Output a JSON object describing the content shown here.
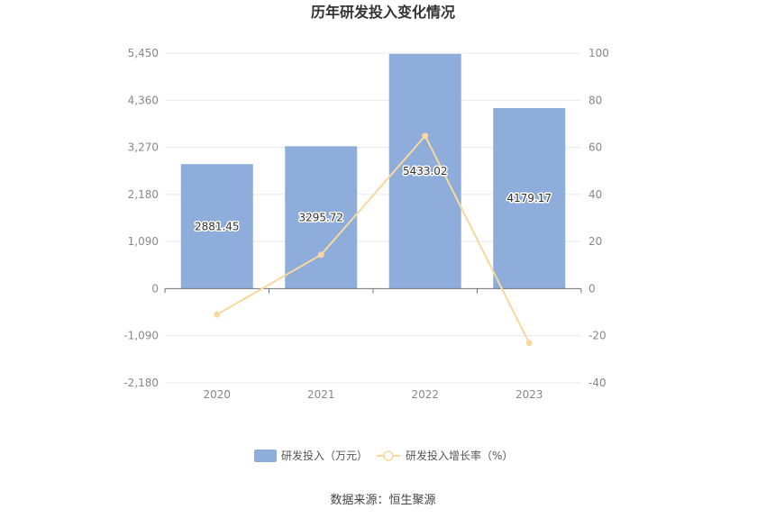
{
  "chart_data": {
    "type": "bar",
    "title": "历年研发投入变化情况",
    "categories": [
      "2020",
      "2021",
      "2022",
      "2023"
    ],
    "series": [
      {
        "name": "研发投入（万元）",
        "type": "bar",
        "axis": "left",
        "values": [
          2881.45,
          3295.72,
          5433.02,
          4179.17
        ],
        "labels": [
          "2881.45",
          "3295.72",
          "5433.02",
          "4179.17"
        ],
        "color": "#8EADDB"
      },
      {
        "name": "研发投入增长率（%）",
        "type": "line",
        "axis": "right",
        "values": [
          -11,
          14.38,
          64.86,
          -23.08
        ],
        "color": "#F7D9A0"
      }
    ],
    "left_axis": {
      "ylim": [
        -2180,
        5450
      ],
      "ticks": [
        5450,
        4360,
        3270,
        2180,
        1090,
        0,
        -1090,
        -2180
      ],
      "tick_labels": [
        "5,450",
        "4,360",
        "3,270",
        "2,180",
        "1,090",
        "0",
        "-1,090",
        "-2,180"
      ]
    },
    "right_axis": {
      "ylim": [
        -40,
        100
      ],
      "ticks": [
        100,
        80,
        60,
        40,
        20,
        0,
        -20,
        -40
      ],
      "tick_labels": [
        "100",
        "80",
        "60",
        "40",
        "20",
        "0",
        "-20",
        "-40"
      ]
    },
    "grid": true,
    "legend_position": "bottom-center",
    "source": "数据来源：恒生聚源"
  }
}
